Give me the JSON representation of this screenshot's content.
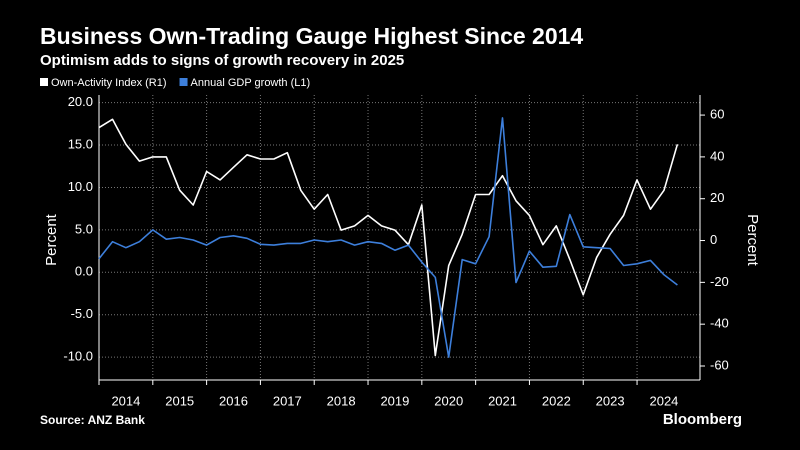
{
  "chart_data": {
    "type": "line",
    "title": "Business Own-Trading Gauge Highest Since 2014",
    "subtitle": "Optimism adds to signs of growth recovery in 2025",
    "ylabel": "Percent",
    "y2label": "Percent",
    "source": "Source: ANZ Bank",
    "brand": "Bloomberg",
    "x": [
      2014,
      2014.25,
      2014.5,
      2014.75,
      2015,
      2015.25,
      2015.5,
      2015.75,
      2016,
      2016.25,
      2016.5,
      2016.75,
      2017,
      2017.25,
      2017.5,
      2017.75,
      2018,
      2018.25,
      2018.5,
      2018.75,
      2019,
      2019.25,
      2019.5,
      2019.75,
      2020,
      2020.25,
      2020.5,
      2020.75,
      2021,
      2021.25,
      2021.5,
      2021.75,
      2022,
      2022.25,
      2022.5,
      2022.75,
      2023,
      2023.25,
      2023.5,
      2023.75,
      2024,
      2024.25,
      2024.5,
      2024.75
    ],
    "series": [
      {
        "name": "Own-Activity Index (R1)",
        "color": "#ffffff",
        "axis": "y2",
        "values": [
          54,
          58,
          46,
          38,
          40,
          40,
          24,
          17,
          33,
          29,
          35,
          41,
          39,
          39,
          42,
          24,
          15,
          22,
          5,
          7,
          12,
          7,
          5,
          -2,
          17,
          -55,
          -12,
          3,
          22,
          22,
          31,
          19,
          12,
          -2,
          7,
          -9,
          -26,
          -8,
          3,
          12,
          29,
          15,
          24,
          46
        ]
      },
      {
        "name": "Annual GDP growth (L1)",
        "color": "#3d7fdb",
        "axis": "y",
        "values": [
          1.6,
          3.6,
          2.9,
          3.6,
          5.0,
          3.9,
          4.1,
          3.8,
          3.2,
          4.1,
          4.3,
          4.0,
          3.3,
          3.2,
          3.4,
          3.4,
          3.8,
          3.6,
          3.8,
          3.2,
          3.6,
          3.4,
          2.6,
          3.2,
          1.2,
          -0.6,
          -10.0,
          1.5,
          1.0,
          4.2,
          18.2,
          -1.2,
          2.5,
          0.6,
          0.7,
          6.8,
          3.0,
          2.9,
          2.8,
          0.8,
          1.0,
          1.4,
          -0.3,
          -1.5
        ]
      }
    ],
    "xlim": [
      2014,
      2025.17
    ],
    "xticks": [
      {
        "value": 2014,
        "label": "2014"
      },
      {
        "value": 2015,
        "label": "2015"
      },
      {
        "value": 2016,
        "label": "2016"
      },
      {
        "value": 2017,
        "label": "2017"
      },
      {
        "value": 2018,
        "label": "2018"
      },
      {
        "value": 2019,
        "label": "2019"
      },
      {
        "value": 2020,
        "label": "2020"
      },
      {
        "value": 2021,
        "label": "2021"
      },
      {
        "value": 2022,
        "label": "2022"
      },
      {
        "value": 2023,
        "label": "2023"
      },
      {
        "value": 2024,
        "label": "2024"
      }
    ],
    "ylim": [
      -12.7,
      20.9
    ],
    "yticks": [
      {
        "value": 20,
        "label": "20.0"
      },
      {
        "value": 15,
        "label": "15.0"
      },
      {
        "value": 10,
        "label": "10.0"
      },
      {
        "value": 5,
        "label": "5.0"
      },
      {
        "value": 0,
        "label": "0.0"
      },
      {
        "value": -5,
        "label": "-5.0"
      },
      {
        "value": -10,
        "label": "-10.0"
      }
    ],
    "y2lim": [
      -66.7,
      69.6
    ],
    "y2ticks": [
      60,
      40,
      20,
      0,
      -20,
      -40,
      -60
    ],
    "grid": true,
    "legend": "top-left"
  }
}
